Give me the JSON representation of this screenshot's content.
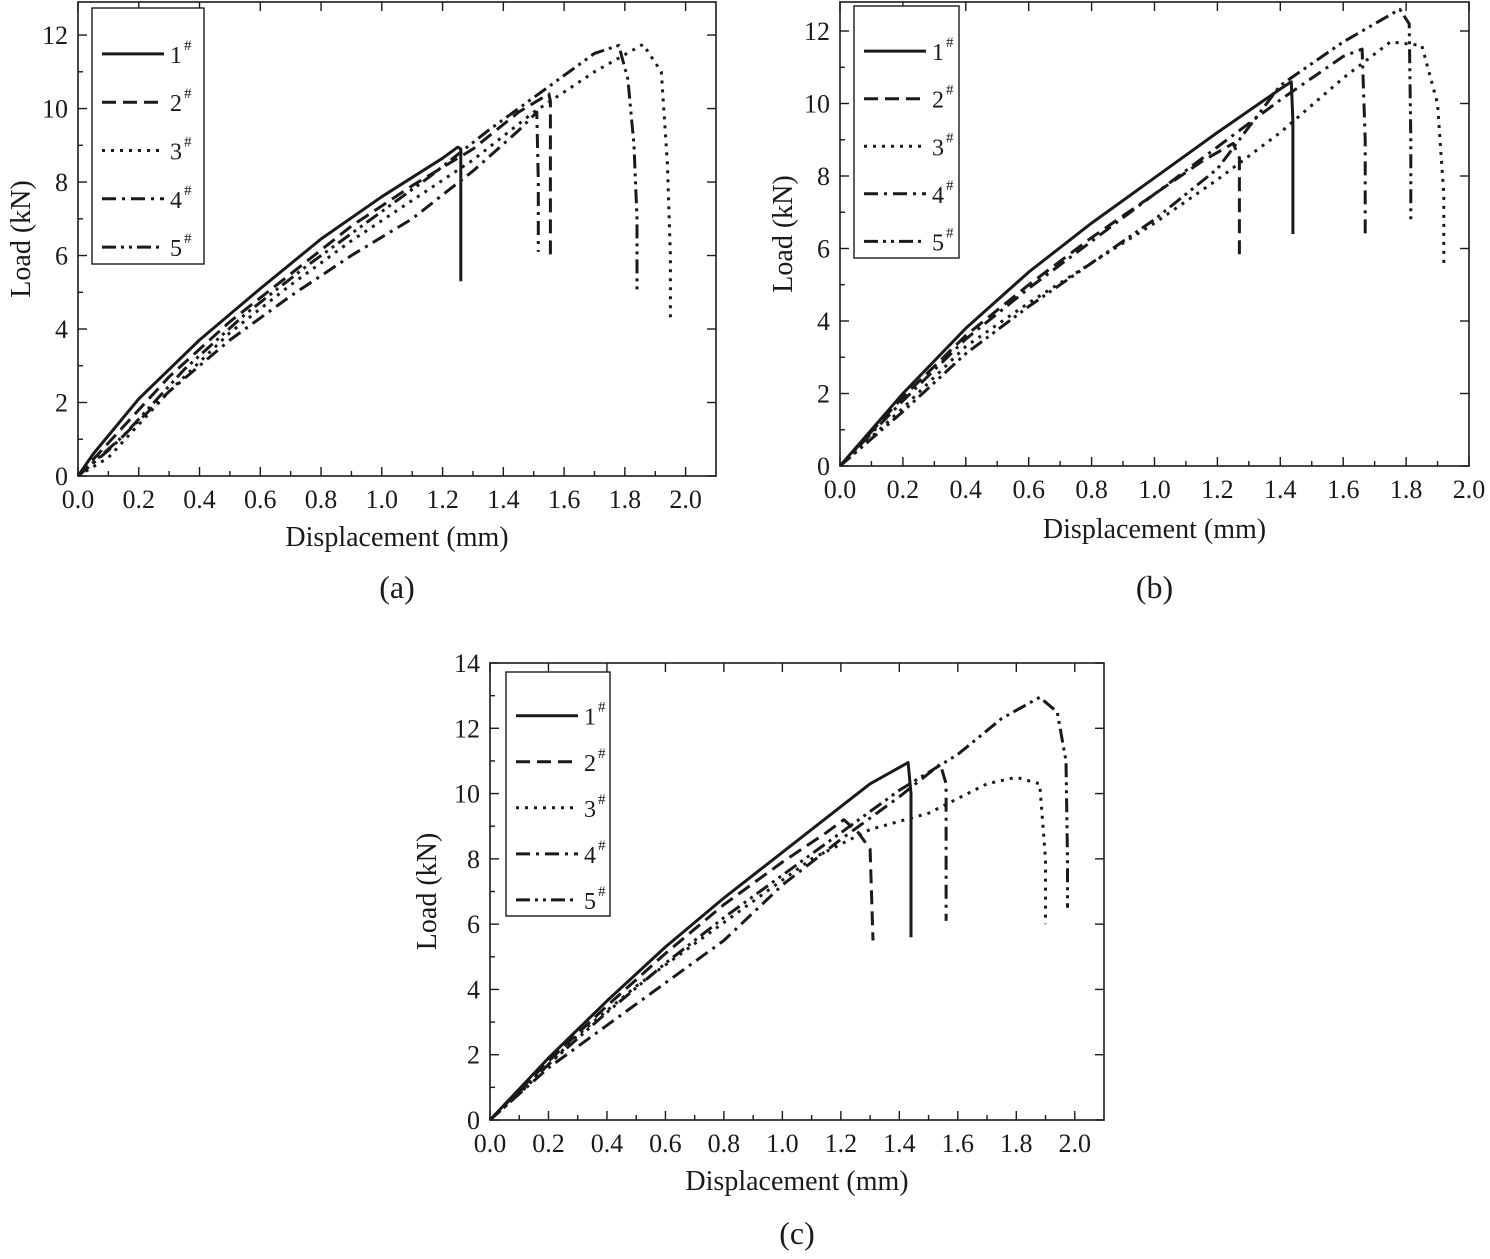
{
  "chart_data": [
    {
      "type": "line",
      "panel_label": "(a)",
      "xlabel": "Displacement (mm)",
      "ylabel": "Load (kN)",
      "xlim": [
        0,
        2.1
      ],
      "ylim": [
        0,
        12.9
      ],
      "xticks": [
        "0.0",
        "0.2",
        "0.4",
        "0.6",
        "0.8",
        "1.0",
        "1.2",
        "1.4",
        "1.6",
        "2.0"
      ],
      "xtick_values": [
        0,
        0.2,
        0.4,
        0.6,
        0.8,
        1.0,
        1.2,
        1.4,
        1.6,
        2.0
      ],
      "xticks_full": [
        "0.0",
        "0.2",
        "0.4",
        "0.6",
        "0.8",
        "1.0",
        "1.2",
        "1.4",
        "1.6",
        "1.8",
        "2.0"
      ],
      "yticks": [
        "0",
        "2",
        "4",
        "6",
        "8",
        "10",
        "12"
      ],
      "legend_position": "top-left",
      "series": [
        {
          "name": "1",
          "sup": "#",
          "dash": "solid",
          "points": [
            [
              0,
              0
            ],
            [
              0.05,
              0.6
            ],
            [
              0.2,
              2.1
            ],
            [
              0.4,
              3.7
            ],
            [
              0.6,
              5.1
            ],
            [
              0.8,
              6.45
            ],
            [
              1.0,
              7.6
            ],
            [
              1.2,
              8.65
            ],
            [
              1.25,
              8.95
            ],
            [
              1.26,
              8.9
            ],
            [
              1.26,
              5.3
            ]
          ]
        },
        {
          "name": "2",
          "sup": "#",
          "dash": "dash",
          "points": [
            [
              0,
              0
            ],
            [
              0.1,
              0.9
            ],
            [
              0.3,
              2.7
            ],
            [
              0.5,
              4.2
            ],
            [
              0.7,
              5.5
            ],
            [
              0.9,
              6.8
            ],
            [
              1.1,
              7.9
            ],
            [
              1.3,
              8.9
            ],
            [
              1.45,
              9.9
            ],
            [
              1.55,
              10.4
            ],
            [
              1.555,
              10.2
            ],
            [
              1.555,
              5.9
            ]
          ]
        },
        {
          "name": "3",
          "sup": "#",
          "dash": "dot",
          "points": [
            [
              0,
              0
            ],
            [
              0.1,
              0.5
            ],
            [
              0.3,
              2.3
            ],
            [
              0.5,
              3.9
            ],
            [
              0.7,
              5.2
            ],
            [
              0.9,
              6.4
            ],
            [
              1.1,
              7.5
            ],
            [
              1.3,
              8.6
            ],
            [
              1.5,
              9.9
            ],
            [
              1.7,
              11.0
            ],
            [
              1.86,
              11.75
            ],
            [
              1.92,
              11.0
            ],
            [
              1.94,
              8.5
            ],
            [
              1.95,
              6.0
            ],
            [
              1.95,
              4.3
            ]
          ]
        },
        {
          "name": "4",
          "sup": "#",
          "dash": "dashdot",
          "points": [
            [
              0,
              0
            ],
            [
              0.1,
              0.7
            ],
            [
              0.3,
              2.3
            ],
            [
              0.5,
              3.7
            ],
            [
              0.7,
              4.9
            ],
            [
              0.9,
              6.0
            ],
            [
              1.1,
              7.0
            ],
            [
              1.3,
              8.3
            ],
            [
              1.45,
              9.4
            ],
            [
              1.51,
              9.9
            ],
            [
              1.515,
              8.0
            ],
            [
              1.515,
              6.1
            ]
          ]
        },
        {
          "name": "5",
          "sup": "#",
          "dash": "dashdotdot",
          "points": [
            [
              0,
              0
            ],
            [
              0.15,
              1.1
            ],
            [
              0.35,
              2.9
            ],
            [
              0.55,
              4.4
            ],
            [
              0.75,
              5.7
            ],
            [
              0.95,
              6.9
            ],
            [
              1.15,
              8.1
            ],
            [
              1.35,
              9.4
            ],
            [
              1.55,
              10.6
            ],
            [
              1.7,
              11.5
            ],
            [
              1.78,
              11.72
            ],
            [
              1.81,
              10.8
            ],
            [
              1.83,
              9.0
            ],
            [
              1.84,
              7.0
            ],
            [
              1.84,
              5.0
            ]
          ]
        }
      ]
    },
    {
      "type": "line",
      "panel_label": "(b)",
      "xlabel": "Displacement (mm)",
      "ylabel": "Load (kN)",
      "xlim": [
        0,
        2.0
      ],
      "ylim": [
        0,
        12.8
      ],
      "xticks": [
        "0.0",
        "0.2",
        "0.4",
        "0.6",
        "0.8",
        "1.0",
        "1.2",
        "1.4",
        "1.6",
        "1.8",
        "2.0"
      ],
      "xtick_values": [
        0,
        0.2,
        0.4,
        0.6,
        0.8,
        1.0,
        1.2,
        1.4,
        1.6,
        1.8,
        2.0
      ],
      "yticks": [
        "0",
        "2",
        "4",
        "6",
        "8",
        "10",
        "12"
      ],
      "legend_position": "top-left",
      "series": [
        {
          "name": "1",
          "sup": "#",
          "dash": "solid",
          "points": [
            [
              0,
              0
            ],
            [
              0.2,
              2.0
            ],
            [
              0.4,
              3.8
            ],
            [
              0.6,
              5.35
            ],
            [
              0.8,
              6.7
            ],
            [
              1.0,
              7.95
            ],
            [
              1.2,
              9.2
            ],
            [
              1.4,
              10.4
            ],
            [
              1.435,
              10.6
            ],
            [
              1.44,
              9.5
            ],
            [
              1.44,
              6.4
            ]
          ]
        },
        {
          "name": "2",
          "sup": "#",
          "dash": "dash",
          "points": [
            [
              0,
              0
            ],
            [
              0.2,
              1.9
            ],
            [
              0.4,
              3.6
            ],
            [
              0.6,
              5.0
            ],
            [
              0.8,
              6.3
            ],
            [
              1.0,
              7.5
            ],
            [
              1.15,
              8.4
            ],
            [
              1.25,
              8.9
            ],
            [
              1.27,
              8.5
            ],
            [
              1.27,
              5.7
            ]
          ]
        },
        {
          "name": "3",
          "sup": "#",
          "dash": "dot",
          "points": [
            [
              0,
              0
            ],
            [
              0.2,
              1.6
            ],
            [
              0.4,
              3.3
            ],
            [
              0.6,
              4.5
            ],
            [
              0.8,
              5.6
            ],
            [
              1.0,
              6.7
            ],
            [
              1.2,
              7.9
            ],
            [
              1.4,
              9.2
            ],
            [
              1.6,
              10.7
            ],
            [
              1.75,
              11.7
            ],
            [
              1.85,
              11.6
            ],
            [
              1.9,
              10.0
            ],
            [
              1.92,
              7.5
            ],
            [
              1.92,
              5.6
            ]
          ]
        },
        {
          "name": "4",
          "sup": "#",
          "dash": "dashdot",
          "points": [
            [
              0,
              0
            ],
            [
              0.2,
              1.8
            ],
            [
              0.4,
              3.5
            ],
            [
              0.6,
              4.9
            ],
            [
              0.8,
              6.2
            ],
            [
              1.0,
              7.5
            ],
            [
              1.2,
              8.8
            ],
            [
              1.4,
              10.1
            ],
            [
              1.6,
              11.3
            ],
            [
              1.66,
              11.5
            ],
            [
              1.67,
              9.0
            ],
            [
              1.67,
              6.3
            ]
          ]
        },
        {
          "name": "5",
          "sup": "#",
          "dash": "dashdotdot",
          "points": [
            [
              0,
              0
            ],
            [
              0.2,
              1.5
            ],
            [
              0.4,
              3.1
            ],
            [
              0.6,
              4.4
            ],
            [
              0.8,
              5.6
            ],
            [
              1.0,
              6.8
            ],
            [
              1.2,
              8.2
            ],
            [
              1.4,
              10.5
            ],
            [
              1.6,
              11.7
            ],
            [
              1.78,
              12.6
            ],
            [
              1.81,
              12.2
            ],
            [
              1.815,
              9.0
            ],
            [
              1.815,
              6.7
            ]
          ]
        }
      ]
    },
    {
      "type": "line",
      "panel_label": "(c)",
      "xlabel": "Displacement (mm)",
      "ylabel": "Load (kN)",
      "xlim": [
        0,
        2.1
      ],
      "ylim": [
        0,
        14
      ],
      "xticks": [
        "0.0",
        "0.2",
        "0.4",
        "0.6",
        "0.8",
        "1.0",
        "1.2",
        "1.4",
        "1.6",
        "1.8",
        "2.0"
      ],
      "xtick_values": [
        0,
        0.2,
        0.4,
        0.6,
        0.8,
        1.0,
        1.2,
        1.4,
        1.6,
        1.8,
        2.0
      ],
      "yticks": [
        "0",
        "2",
        "4",
        "6",
        "8",
        "10",
        "12",
        "14"
      ],
      "legend_position": "top-left",
      "series": [
        {
          "name": "1",
          "sup": "#",
          "dash": "solid",
          "points": [
            [
              0,
              0
            ],
            [
              0.2,
              1.9
            ],
            [
              0.4,
              3.65
            ],
            [
              0.6,
              5.3
            ],
            [
              0.8,
              6.8
            ],
            [
              1.0,
              8.2
            ],
            [
              1.2,
              9.6
            ],
            [
              1.3,
              10.3
            ],
            [
              1.43,
              10.95
            ],
            [
              1.44,
              10.0
            ],
            [
              1.44,
              5.6
            ]
          ]
        },
        {
          "name": "2",
          "sup": "#",
          "dash": "dash",
          "points": [
            [
              0,
              0
            ],
            [
              0.2,
              1.8
            ],
            [
              0.4,
              3.5
            ],
            [
              0.6,
              5.1
            ],
            [
              0.8,
              6.6
            ],
            [
              1.0,
              7.9
            ],
            [
              1.15,
              8.8
            ],
            [
              1.21,
              9.2
            ],
            [
              1.26,
              8.8
            ],
            [
              1.3,
              8.3
            ],
            [
              1.31,
              5.5
            ]
          ]
        },
        {
          "name": "3",
          "sup": "#",
          "dash": "dot",
          "points": [
            [
              0,
              0
            ],
            [
              0.1,
              0.8
            ],
            [
              0.3,
              2.6
            ],
            [
              0.5,
              4.1
            ],
            [
              0.7,
              5.4
            ],
            [
              0.9,
              6.7
            ],
            [
              1.1,
              8.0
            ],
            [
              1.3,
              8.9
            ],
            [
              1.5,
              9.4
            ],
            [
              1.7,
              10.3
            ],
            [
              1.8,
              10.5
            ],
            [
              1.88,
              10.3
            ],
            [
              1.9,
              8.0
            ],
            [
              1.9,
              6.0
            ]
          ]
        },
        {
          "name": "4",
          "sup": "#",
          "dash": "dashdot",
          "points": [
            [
              0,
              0
            ],
            [
              0.2,
              1.6
            ],
            [
              0.4,
              2.9
            ],
            [
              0.6,
              4.2
            ],
            [
              0.8,
              5.5
            ],
            [
              1.0,
              7.2
            ],
            [
              1.2,
              8.6
            ],
            [
              1.4,
              9.9
            ],
            [
              1.54,
              10.9
            ],
            [
              1.56,
              10.3
            ],
            [
              1.56,
              6.1
            ]
          ]
        },
        {
          "name": "5",
          "sup": "#",
          "dash": "dashdotdot",
          "points": [
            [
              0,
              0
            ],
            [
              0.2,
              1.7
            ],
            [
              0.4,
              3.3
            ],
            [
              0.6,
              4.8
            ],
            [
              0.8,
              6.2
            ],
            [
              1.0,
              7.5
            ],
            [
              1.2,
              8.8
            ],
            [
              1.4,
              10.1
            ],
            [
              1.6,
              11.2
            ],
            [
              1.75,
              12.3
            ],
            [
              1.88,
              12.95
            ],
            [
              1.94,
              12.5
            ],
            [
              1.97,
              11.0
            ],
            [
              1.975,
              8.0
            ],
            [
              1.975,
              6.5
            ]
          ]
        }
      ]
    }
  ]
}
